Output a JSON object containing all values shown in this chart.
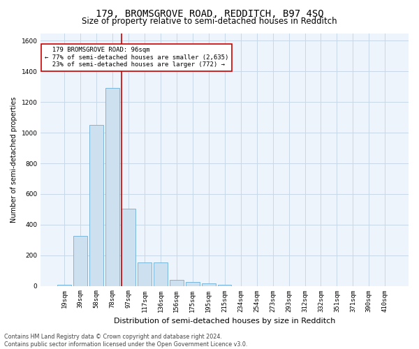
{
  "title": "179, BROMSGROVE ROAD, REDDITCH, B97 4SQ",
  "subtitle": "Size of property relative to semi-detached houses in Redditch",
  "xlabel": "Distribution of semi-detached houses by size in Redditch",
  "ylabel": "Number of semi-detached properties",
  "footer_line1": "Contains HM Land Registry data © Crown copyright and database right 2024.",
  "footer_line2": "Contains public sector information licensed under the Open Government Licence v3.0.",
  "bar_labels": [
    "19sqm",
    "39sqm",
    "58sqm",
    "78sqm",
    "97sqm",
    "117sqm",
    "136sqm",
    "156sqm",
    "175sqm",
    "195sqm",
    "215sqm",
    "234sqm",
    "254sqm",
    "273sqm",
    "293sqm",
    "312sqm",
    "332sqm",
    "351sqm",
    "371sqm",
    "390sqm",
    "410sqm"
  ],
  "bar_values": [
    5,
    325,
    1050,
    1290,
    505,
    155,
    155,
    40,
    25,
    15,
    5,
    0,
    0,
    0,
    0,
    0,
    0,
    0,
    0,
    0,
    0
  ],
  "bar_color": "#cce0f0",
  "bar_edge_color": "#6baed6",
  "grid_color": "#c8d8e8",
  "background_color": "#eef4fb",
  "property_label": "179 BROMSGROVE ROAD: 96sqm",
  "pct_smaller": 77,
  "pct_smaller_count": 2635,
  "pct_larger": 23,
  "pct_larger_count": 772,
  "vline_color": "#cc0000",
  "annotation_box_color": "#cc0000",
  "ylim": [
    0,
    1650
  ],
  "yticks": [
    0,
    200,
    400,
    600,
    800,
    1000,
    1200,
    1400,
    1600
  ],
  "title_fontsize": 10,
  "subtitle_fontsize": 8.5,
  "xlabel_fontsize": 8,
  "ylabel_fontsize": 7,
  "tick_fontsize": 6.5,
  "annotation_fontsize": 6.5,
  "footer_fontsize": 5.8
}
